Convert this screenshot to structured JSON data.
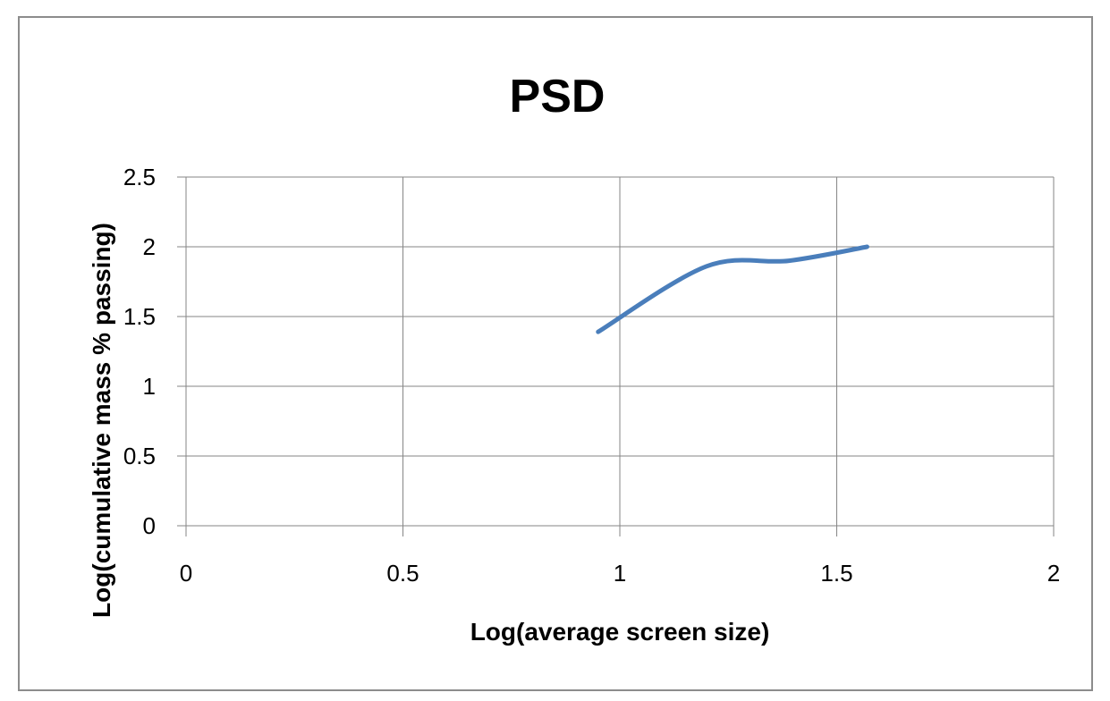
{
  "chart_data": {
    "type": "line",
    "title": "PSD",
    "xlabel": "Log(average screen size)",
    "ylabel": "Log(cumulative mass % passing)",
    "xlim": [
      0,
      2
    ],
    "ylim": [
      0,
      2.5
    ],
    "x_ticks": [
      "0",
      "0.5",
      "1",
      "1.5",
      "2"
    ],
    "y_ticks": [
      "0",
      "0.5",
      "1",
      "1.5",
      "2",
      "2.5"
    ],
    "grid": true,
    "legend": "none",
    "smooth": true,
    "series": [
      {
        "color": "#4a7ebb",
        "x": [
          0.95,
          1.2,
          1.39,
          1.57
        ],
        "y": [
          1.39,
          1.86,
          1.9,
          2.0
        ]
      }
    ]
  }
}
